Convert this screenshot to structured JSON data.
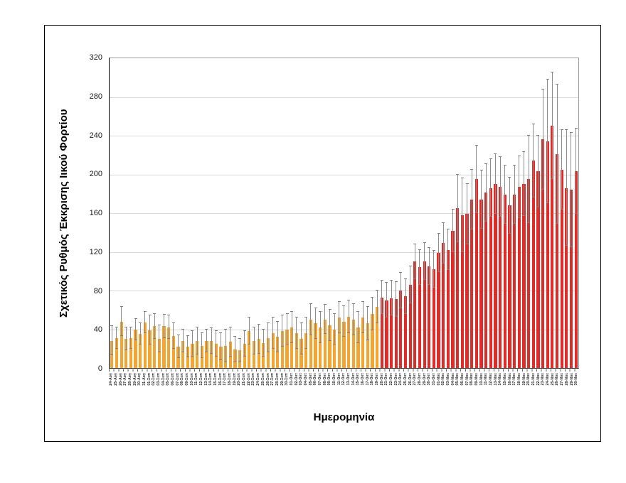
{
  "chart_data": {
    "type": "bar",
    "title": "",
    "xlabel": "Ημερομηνία",
    "ylabel": "Σχετικός Ρυθμός Έκκρισης Ιικού Φορτίου",
    "ylim": [
      0,
      320
    ],
    "ytick_step": 40,
    "grid": true,
    "legend": false,
    "error_bars": "symmetric",
    "bar_color_early": "#F5A52F",
    "bar_color_late": "#E22B26",
    "error_color": "#8C8C8C",
    "first_red_label": "20-Οκτ",
    "first_red_index": 57,
    "categories": [
      "24-Αυγ",
      "25-Αυγ",
      "26-Αυγ",
      "27-Αυγ",
      "28-Αυγ",
      "29-Αυγ",
      "30-Αυγ",
      "31-Αυγ",
      "01-Σεπ",
      "02-Σεπ",
      "03-Σεπ",
      "04-Σεπ",
      "05-Σεπ",
      "06-Σεπ",
      "07-Σεπ",
      "08-Σεπ",
      "09-Σεπ",
      "10-Σεπ",
      "11-Σεπ",
      "12-Σεπ",
      "13-Σεπ",
      "14-Σεπ",
      "15-Σεπ",
      "16-Σεπ",
      "17-Σεπ",
      "18-Σεπ",
      "19-Σεπ",
      "20-Σεπ",
      "21-Σεπ",
      "22-Σεπ",
      "23-Σεπ",
      "24-Σεπ",
      "25-Σεπ",
      "26-Σεπ",
      "27-Σεπ",
      "28-Σεπ",
      "29-Σεπ",
      "30-Σεπ",
      "01-Οκτ",
      "02-Οκτ",
      "03-Οκτ",
      "04-Οκτ",
      "05-Οκτ",
      "06-Οκτ",
      "07-Οκτ",
      "08-Οκτ",
      "09-Οκτ",
      "10-Οκτ",
      "11-Οκτ",
      "12-Οκτ",
      "13-Οκτ",
      "14-Οκτ",
      "15-Οκτ",
      "16-Οκτ",
      "17-Οκτ",
      "18-Οκτ",
      "19-Οκτ",
      "20-Οκτ",
      "21-Οκτ",
      "22-Οκτ",
      "23-Οκτ",
      "24-Οκτ",
      "25-Οκτ",
      "26-Οκτ",
      "27-Οκτ",
      "28-Οκτ",
      "29-Οκτ",
      "30-Οκτ",
      "31-Οκτ",
      "01-Νοε",
      "02-Νοε",
      "03-Νοε",
      "04-Νοε",
      "05-Νοε",
      "06-Νοε",
      "07-Νοε",
      "08-Νοε",
      "09-Νοε",
      "10-Νοε",
      "11-Νοε",
      "12-Νοε",
      "13-Νοε",
      "14-Νοε",
      "15-Νοε",
      "16-Νοε",
      "17-Νοε",
      "18-Νοε",
      "19-Νοε",
      "20-Νοε",
      "21-Νοε",
      "22-Νοε",
      "23-Νοε",
      "24-Νοε",
      "25-Νοε",
      "26-Νοε",
      "27-Νοε",
      "28-Νοε",
      "29-Νοε",
      "30-Νοε"
    ],
    "values": [
      28,
      31,
      48,
      30,
      31,
      40,
      35,
      47,
      39,
      43,
      30,
      43,
      42,
      33,
      22,
      28,
      22,
      25,
      28,
      23,
      28,
      28,
      25,
      22,
      23,
      27,
      19,
      18,
      25,
      38,
      28,
      30,
      26,
      31,
      36,
      32,
      38,
      40,
      42,
      36,
      30,
      36,
      50,
      46,
      42,
      50,
      44,
      40,
      52,
      48,
      53,
      50,
      42,
      52,
      46,
      56,
      63,
      73,
      70,
      72,
      71,
      80,
      74,
      86,
      110,
      104,
      110,
      105,
      102,
      119,
      129,
      122,
      142,
      165,
      158,
      159,
      174,
      195,
      174,
      181,
      186,
      190,
      187,
      179,
      168,
      179,
      187,
      190,
      195,
      214,
      203,
      236,
      234,
      250,
      221,
      205,
      186,
      184,
      203
    ],
    "err_high": [
      43,
      42,
      63,
      42,
      42,
      51,
      46,
      58,
      54,
      56,
      44,
      55,
      54,
      46,
      34,
      40,
      33,
      38,
      42,
      36,
      40,
      41,
      38,
      36,
      40,
      42,
      32,
      30,
      38,
      52,
      42,
      45,
      40,
      46,
      52,
      48,
      54,
      56,
      58,
      52,
      46,
      52,
      66,
      62,
      58,
      65,
      60,
      56,
      68,
      64,
      70,
      66,
      58,
      68,
      63,
      73,
      80,
      90,
      88,
      90,
      89,
      98,
      92,
      105,
      128,
      122,
      129,
      124,
      121,
      139,
      150,
      143,
      164,
      200,
      196,
      190,
      205,
      230,
      204,
      211,
      216,
      221,
      218,
      209,
      197,
      209,
      219,
      223,
      240,
      252,
      240,
      288,
      298,
      305,
      293,
      246,
      246,
      243,
      247
    ]
  }
}
